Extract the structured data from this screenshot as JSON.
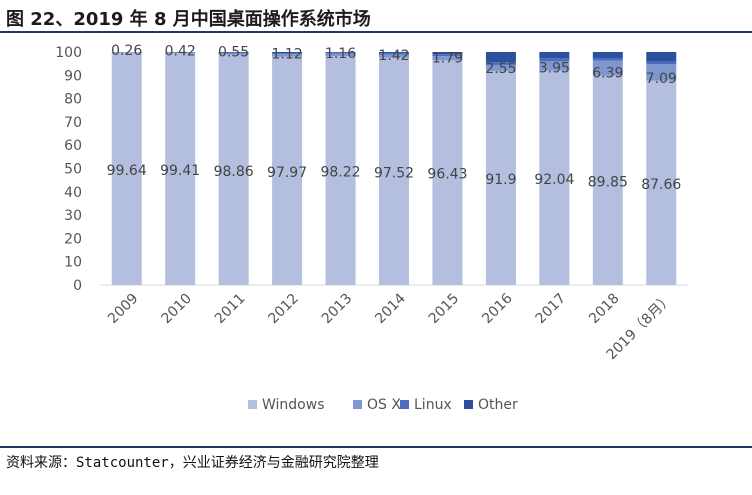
{
  "header": {
    "title": "图 22、2019 年 8 月中国桌面操作系统市场"
  },
  "footer": {
    "source": "资料来源：Statcounter，兴业证券经济与金融研究院整理"
  },
  "chart_data": {
    "type": "bar",
    "stacked": true,
    "categories": [
      "2009",
      "2010",
      "2011",
      "2012",
      "2013",
      "2014",
      "2015",
      "2016",
      "2017",
      "2018",
      "2019（8月）"
    ],
    "series": [
      {
        "name": "Windows",
        "color": "#b4bfdf",
        "values": [
          99.64,
          99.41,
          98.86,
          97.97,
          98.22,
          97.52,
          96.43,
          91.9,
          92.04,
          89.85,
          87.66
        ],
        "labels": [
          "99.64",
          "99.41",
          "98.86",
          "97.97",
          "98.22",
          "97.52",
          "96.43",
          "91.9",
          "92.04",
          "89.85",
          "87.66"
        ]
      },
      {
        "name": "OS X",
        "color": "#7f97cf",
        "values": [
          0.26,
          0.42,
          0.55,
          1.12,
          1.16,
          1.42,
          1.79,
          2.55,
          3.95,
          6.39,
          7.09
        ],
        "labels": [
          "0.26",
          "0.42",
          "0.55",
          "1.12",
          "1.16",
          "1.42",
          "1.79",
          "2.55",
          "3.95",
          "6.39",
          "7.09"
        ]
      },
      {
        "name": "Linux",
        "color": "#4a6cc2",
        "values": [
          0.05,
          0.07,
          0.25,
          0.4,
          0.3,
          0.5,
          0.8,
          1.2,
          1.3,
          1.2,
          1.2
        ]
      },
      {
        "name": "Other",
        "color": "#2c4f9e",
        "values": [
          0.05,
          0.1,
          0.34,
          0.51,
          0.32,
          0.56,
          0.98,
          4.35,
          2.71,
          2.56,
          4.05
        ]
      }
    ],
    "yticks": [
      "0",
      "10",
      "20",
      "30",
      "40",
      "50",
      "60",
      "70",
      "80",
      "90",
      "100"
    ],
    "ylim": [
      0,
      100
    ],
    "grid": false,
    "legend_position": "bottom"
  }
}
